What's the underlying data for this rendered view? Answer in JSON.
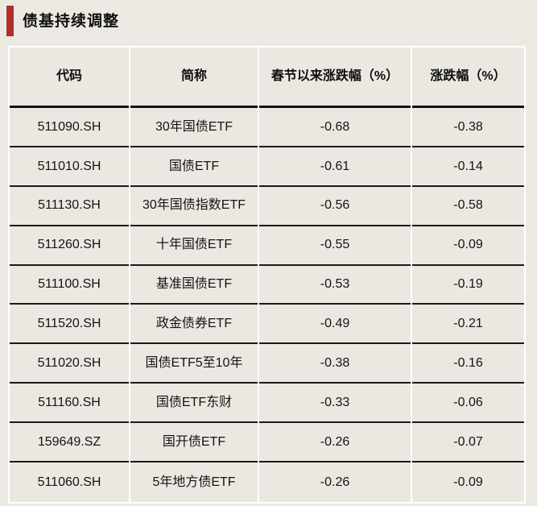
{
  "header": {
    "title": "债基持续调整"
  },
  "colors": {
    "accent_red": "#b0302c",
    "background": "#ece9e3",
    "row_separator": "#1a1a1a",
    "column_divider": "#ffffff"
  },
  "chart_data": {
    "type": "table",
    "title": "债基持续调整",
    "columns": [
      "代码",
      "简称",
      "春节以来涨跌幅（%）",
      "涨跌幅（%）"
    ],
    "rows": [
      [
        "511090.SH",
        "30年国债ETF",
        "-0.68",
        "-0.38"
      ],
      [
        "511010.SH",
        "国债ETF",
        "-0.61",
        "-0.14"
      ],
      [
        "511130.SH",
        "30年国债指数ETF",
        "-0.56",
        "-0.58"
      ],
      [
        "511260.SH",
        "十年国债ETF",
        "-0.55",
        "-0.09"
      ],
      [
        "511100.SH",
        "基准国债ETF",
        "-0.53",
        "-0.19"
      ],
      [
        "511520.SH",
        "政金债券ETF",
        "-0.49",
        "-0.21"
      ],
      [
        "511020.SH",
        "国债ETF5至10年",
        "-0.38",
        "-0.16"
      ],
      [
        "511160.SH",
        "国债ETF东财",
        "-0.33",
        "-0.06"
      ],
      [
        "159649.SZ",
        "国开债ETF",
        "-0.26",
        "-0.07"
      ],
      [
        "511060.SH",
        "5年地方债ETF",
        "-0.26",
        "-0.09"
      ]
    ]
  }
}
